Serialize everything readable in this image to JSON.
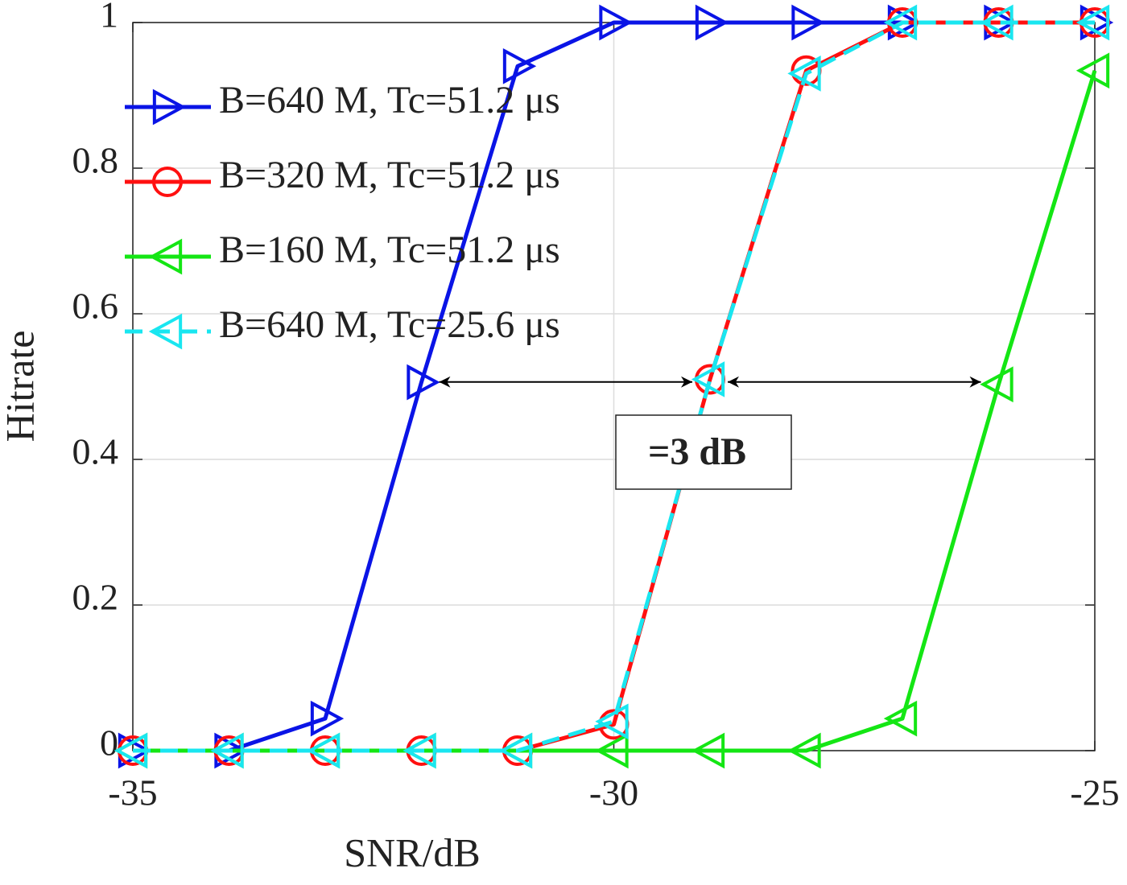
{
  "chart_data": {
    "type": "line",
    "x": [
      -35,
      -34,
      -33,
      -32,
      -31,
      -30,
      -29,
      -28,
      -27,
      -26,
      -25
    ],
    "series": [
      {
        "name": "B=640 M, Tc=51.2 μs",
        "color": "#0a14e6",
        "marker": "triangle-right",
        "linestyle": "solid",
        "values": [
          0,
          0,
          0.044,
          0.506,
          0.94,
          1,
          1,
          1,
          1,
          1,
          1
        ]
      },
      {
        "name": "B=320 M, Tc=51.2 μs",
        "color": "#ff1010",
        "marker": "circle",
        "linestyle": "solid",
        "values": [
          0,
          0,
          0,
          0,
          0,
          0.036,
          0.51,
          0.934,
          1,
          1,
          1
        ]
      },
      {
        "name": "B=160 M, Tc=51.2 μs",
        "color": "#14e614",
        "marker": "triangle-left",
        "linestyle": "solid",
        "values": [
          0,
          0,
          0,
          0,
          0,
          0,
          0,
          0,
          0.044,
          0.503,
          0.934
        ]
      },
      {
        "name": "B=640 M, Tc=25.6 μs",
        "color": "#19e6f0",
        "marker": "triangle-left",
        "linestyle": "dashed",
        "values": [
          0,
          0,
          0,
          0,
          0,
          0.04,
          0.51,
          0.93,
          1,
          1,
          1
        ]
      }
    ],
    "x_label": "SNR/dB",
    "y_label": "Hitrate",
    "xlim": [
      -35,
      -25
    ],
    "xticks": [
      -35,
      -30,
      -25
    ],
    "ylim": [
      0,
      1
    ],
    "yticks": [
      0,
      0.2,
      0.4,
      0.6,
      0.8,
      1
    ],
    "grid": true,
    "legend": "upper-left",
    "annotation": "=3 dB"
  }
}
